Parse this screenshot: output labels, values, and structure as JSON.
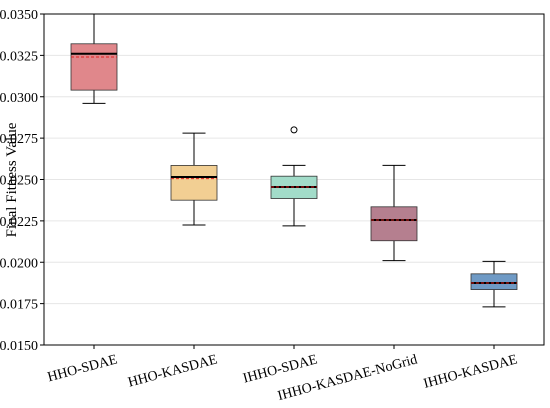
{
  "chart_data": {
    "type": "box",
    "ylabel": "Final Fitness Value",
    "xlabel": "",
    "ylim": [
      0.015,
      0.035
    ],
    "yticks": [
      "0.0150",
      "0.0175",
      "0.0200",
      "0.0225",
      "0.0250",
      "0.0275",
      "0.0300",
      "0.0325",
      "0.0350"
    ],
    "grid": "horizontal",
    "mean_line": "red dashed",
    "median_line": "black solid",
    "categories": [
      "HHO-SDAE",
      "HHO-KASDAE",
      "IHHO-SDAE",
      "IHHO-KASDAE-NoGrid",
      "IHHO-KASDAE"
    ],
    "boxes": [
      {
        "category": "HHO-SDAE",
        "color": "#e0878b",
        "whisker_low": 0.0296,
        "q1": 0.0304,
        "median": 0.0326,
        "mean": 0.0324,
        "q3": 0.0332,
        "whisker_high": 0.035,
        "outliers": []
      },
      {
        "category": "HHO-KASDAE",
        "color": "#f2cf93",
        "whisker_low": 0.02225,
        "q1": 0.02375,
        "median": 0.02515,
        "mean": 0.02505,
        "q3": 0.02585,
        "whisker_high": 0.0278,
        "outliers": []
      },
      {
        "category": "IHHO-SDAE",
        "color": "#a2dcc9",
        "whisker_low": 0.0222,
        "q1": 0.02385,
        "median": 0.02455,
        "mean": 0.02455,
        "q3": 0.0252,
        "whisker_high": 0.02585,
        "outliers": [
          0.028
        ]
      },
      {
        "category": "IHHO-KASDAE-NoGrid",
        "color": "#b57f8f",
        "whisker_low": 0.0201,
        "q1": 0.0213,
        "median": 0.02255,
        "mean": 0.02255,
        "q3": 0.02335,
        "whisker_high": 0.02585,
        "outliers": []
      },
      {
        "category": "IHHO-KASDAE",
        "color": "#6f9ac5",
        "whisker_low": 0.0173,
        "q1": 0.01835,
        "median": 0.01875,
        "mean": 0.01875,
        "q3": 0.0193,
        "whisker_high": 0.02005,
        "outliers": []
      }
    ]
  }
}
